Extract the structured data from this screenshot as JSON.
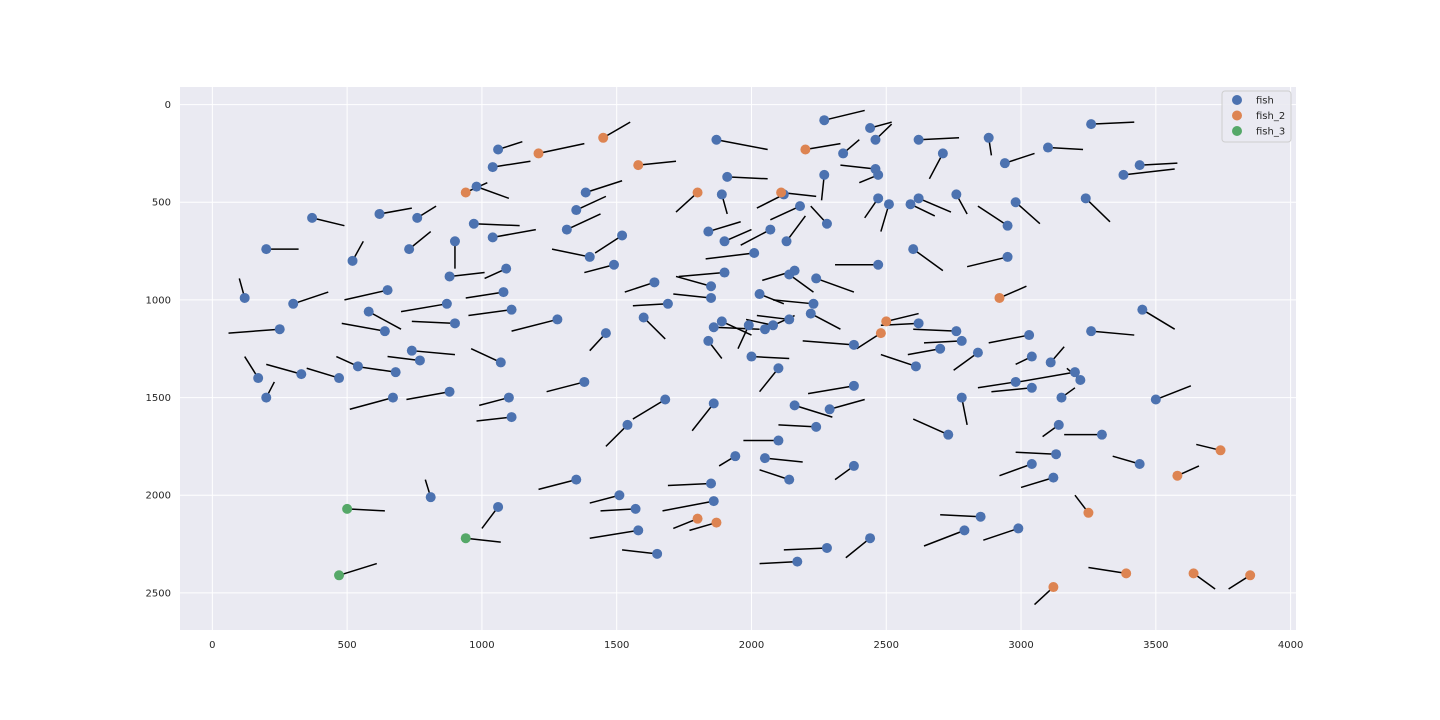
{
  "chart_data": {
    "type": "scatter",
    "title": "",
    "xlabel": "",
    "ylabel": "",
    "xlim": [
      -120,
      4020
    ],
    "ylim": [
      2690,
      -90
    ],
    "y_inverted": true,
    "xticks": [
      0,
      500,
      1000,
      1500,
      2000,
      2500,
      3000,
      3500,
      4000
    ],
    "yticks": [
      0,
      500,
      1000,
      1500,
      2000,
      2500
    ],
    "grid": true,
    "legend_position": "top-right",
    "background": "#eaeaf2",
    "series": [
      {
        "name": "fish",
        "color": "#4c72b0",
        "points": [
          [
            1060,
            230,
            1150,
            190
          ],
          [
            1040,
            320,
            1180,
            290
          ],
          [
            980,
            420,
            1100,
            480
          ],
          [
            1385,
            450,
            1520,
            390
          ],
          [
            1350,
            540,
            1460,
            470
          ],
          [
            1315,
            640,
            1440,
            560
          ],
          [
            1400,
            780,
            1260,
            740
          ],
          [
            1490,
            820,
            1380,
            860
          ],
          [
            1520,
            670,
            1420,
            760
          ],
          [
            1870,
            180,
            2060,
            230
          ],
          [
            1910,
            370,
            2060,
            380
          ],
          [
            1890,
            460,
            1910,
            560
          ],
          [
            1900,
            700,
            2000,
            640
          ],
          [
            1840,
            650,
            1960,
            600
          ],
          [
            1900,
            860,
            1730,
            880
          ],
          [
            1850,
            930,
            1720,
            880
          ],
          [
            1850,
            990,
            1710,
            970
          ],
          [
            1890,
            1110,
            2000,
            1180
          ],
          [
            2030,
            970,
            2120,
            1020
          ],
          [
            2010,
            760,
            1830,
            790
          ],
          [
            2070,
            640,
            1960,
            720
          ],
          [
            2120,
            460,
            2020,
            530
          ],
          [
            2130,
            700,
            2200,
            570
          ],
          [
            2180,
            520,
            2070,
            590
          ],
          [
            2270,
            360,
            2260,
            490
          ],
          [
            2280,
            610,
            2220,
            520
          ],
          [
            2340,
            250,
            2400,
            180
          ],
          [
            2440,
            120,
            2520,
            90
          ],
          [
            2270,
            80,
            2420,
            30
          ],
          [
            2460,
            180,
            2520,
            100
          ],
          [
            2460,
            330,
            2330,
            310
          ],
          [
            2470,
            360,
            2400,
            400
          ],
          [
            2470,
            480,
            2420,
            580
          ],
          [
            2510,
            510,
            2480,
            650
          ],
          [
            2590,
            510,
            2680,
            570
          ],
          [
            2620,
            480,
            2740,
            550
          ],
          [
            2620,
            180,
            2770,
            170
          ],
          [
            2710,
            250,
            2660,
            380
          ],
          [
            2760,
            460,
            2800,
            560
          ],
          [
            2880,
            170,
            2890,
            260
          ],
          [
            2940,
            300,
            3050,
            250
          ],
          [
            2950,
            620,
            2840,
            520
          ],
          [
            2980,
            500,
            3070,
            610
          ],
          [
            3100,
            220,
            3230,
            230
          ],
          [
            3260,
            100,
            3420,
            90
          ],
          [
            3380,
            360,
            3570,
            330
          ],
          [
            3440,
            310,
            3580,
            300
          ],
          [
            3240,
            480,
            3330,
            600
          ],
          [
            2470,
            820,
            2310,
            820
          ],
          [
            2600,
            740,
            2710,
            850
          ],
          [
            2950,
            780,
            2800,
            830
          ],
          [
            2140,
            870,
            2230,
            960
          ],
          [
            2160,
            850,
            2040,
            900
          ],
          [
            2240,
            890,
            2380,
            960
          ],
          [
            2230,
            1020,
            2080,
            1000
          ],
          [
            2220,
            1070,
            2330,
            1150
          ],
          [
            2050,
            1150,
            2160,
            1080
          ],
          [
            2080,
            1130,
            1980,
            1100
          ],
          [
            2140,
            1100,
            2020,
            1080
          ],
          [
            1990,
            1130,
            1950,
            1250
          ],
          [
            2380,
            1230,
            2190,
            1210
          ],
          [
            2000,
            1290,
            2140,
            1300
          ],
          [
            1640,
            910,
            1530,
            960
          ],
          [
            1690,
            1020,
            1560,
            1030
          ],
          [
            1600,
            1090,
            1680,
            1200
          ],
          [
            1460,
            1170,
            1400,
            1260
          ],
          [
            1280,
            1100,
            1110,
            1160
          ],
          [
            1110,
            1050,
            950,
            1080
          ],
          [
            1090,
            840,
            1010,
            890
          ],
          [
            1080,
            960,
            940,
            990
          ],
          [
            1040,
            680,
            1200,
            640
          ],
          [
            970,
            610,
            1140,
            620
          ],
          [
            900,
            700,
            900,
            840
          ],
          [
            880,
            880,
            1010,
            860
          ],
          [
            870,
            1020,
            700,
            1060
          ],
          [
            900,
            1120,
            740,
            1110
          ],
          [
            760,
            580,
            830,
            520
          ],
          [
            730,
            740,
            810,
            650
          ],
          [
            740,
            1260,
            900,
            1280
          ],
          [
            770,
            1310,
            650,
            1290
          ],
          [
            680,
            1370,
            530,
            1340
          ],
          [
            640,
            1160,
            480,
            1120
          ],
          [
            650,
            950,
            490,
            1000
          ],
          [
            620,
            560,
            740,
            530
          ],
          [
            580,
            1060,
            700,
            1150
          ],
          [
            540,
            1340,
            460,
            1290
          ],
          [
            520,
            800,
            560,
            700
          ],
          [
            470,
            1400,
            350,
            1350
          ],
          [
            370,
            580,
            490,
            620
          ],
          [
            300,
            1020,
            430,
            960
          ],
          [
            330,
            1380,
            200,
            1330
          ],
          [
            250,
            1150,
            60,
            1170
          ],
          [
            200,
            740,
            320,
            740
          ],
          [
            170,
            1400,
            120,
            1290
          ],
          [
            200,
            1500,
            230,
            1420
          ],
          [
            120,
            990,
            100,
            890
          ],
          [
            1070,
            1320,
            960,
            1250
          ],
          [
            1100,
            1500,
            990,
            1540
          ],
          [
            1110,
            1600,
            980,
            1620
          ],
          [
            1380,
            1420,
            1240,
            1470
          ],
          [
            1540,
            1640,
            1460,
            1750
          ],
          [
            1680,
            1510,
            1560,
            1610
          ],
          [
            1860,
            1530,
            1780,
            1670
          ],
          [
            1840,
            1210,
            1890,
            1300
          ],
          [
            1860,
            1140,
            2030,
            1150
          ],
          [
            2100,
            1350,
            2030,
            1470
          ],
          [
            2380,
            1440,
            2210,
            1480
          ],
          [
            2290,
            1560,
            2420,
            1510
          ],
          [
            2160,
            1540,
            2300,
            1600
          ],
          [
            2240,
            1650,
            2100,
            1640
          ],
          [
            2140,
            1920,
            2030,
            1870
          ],
          [
            2100,
            1720,
            1970,
            1720
          ],
          [
            2050,
            1810,
            2190,
            1830
          ],
          [
            1940,
            1800,
            1880,
            1850
          ],
          [
            1860,
            2030,
            1670,
            2080
          ],
          [
            1850,
            1940,
            1690,
            1950
          ],
          [
            2280,
            2270,
            2120,
            2280
          ],
          [
            2170,
            2340,
            2030,
            2350
          ],
          [
            2440,
            2220,
            2350,
            2320
          ],
          [
            2380,
            1850,
            2310,
            1920
          ],
          [
            2730,
            1690,
            2600,
            1610
          ],
          [
            2780,
            1500,
            2800,
            1640
          ],
          [
            2780,
            1210,
            2640,
            1220
          ],
          [
            2760,
            1160,
            2600,
            1150
          ],
          [
            2840,
            1270,
            2750,
            1360
          ],
          [
            2700,
            1250,
            2580,
            1280
          ],
          [
            2620,
            1120,
            2480,
            1130
          ],
          [
            2610,
            1340,
            2480,
            1280
          ],
          [
            2850,
            2110,
            2700,
            2100
          ],
          [
            2790,
            2180,
            2640,
            2260
          ],
          [
            2990,
            2170,
            2860,
            2230
          ],
          [
            3040,
            1840,
            2920,
            1900
          ],
          [
            3120,
            1910,
            3000,
            1960
          ],
          [
            3130,
            1790,
            2980,
            1780
          ],
          [
            3140,
            1640,
            3080,
            1700
          ],
          [
            3040,
            1290,
            2980,
            1330
          ],
          [
            3040,
            1450,
            2890,
            1470
          ],
          [
            3110,
            1320,
            3160,
            1240
          ],
          [
            2980,
            1420,
            2840,
            1450
          ],
          [
            3030,
            1180,
            2880,
            1220
          ],
          [
            3150,
            1500,
            3200,
            1450
          ],
          [
            3200,
            1370,
            2990,
            1420
          ],
          [
            3220,
            1410,
            3170,
            1350
          ],
          [
            3300,
            1690,
            3160,
            1690
          ],
          [
            3260,
            1160,
            3420,
            1180
          ],
          [
            3450,
            1050,
            3570,
            1150
          ],
          [
            3440,
            1840,
            3340,
            1800
          ],
          [
            3500,
            1510,
            3630,
            1440
          ],
          [
            1060,
            2060,
            1000,
            2170
          ],
          [
            810,
            2010,
            790,
            1920
          ],
          [
            880,
            1470,
            720,
            1510
          ],
          [
            670,
            1500,
            510,
            1560
          ],
          [
            1650,
            2300,
            1520,
            2280
          ],
          [
            1580,
            2180,
            1400,
            2220
          ],
          [
            1570,
            2070,
            1440,
            2080
          ],
          [
            1510,
            2000,
            1400,
            2040
          ],
          [
            1350,
            1920,
            1210,
            1970
          ]
        ]
      },
      {
        "name": "fish_2",
        "color": "#dd8452",
        "points": [
          [
            940,
            450,
            1020,
            400
          ],
          [
            1210,
            250,
            1380,
            200
          ],
          [
            1450,
            170,
            1550,
            90
          ],
          [
            1580,
            310,
            1720,
            290
          ],
          [
            1800,
            450,
            1720,
            550
          ],
          [
            2110,
            450,
            2240,
            470
          ],
          [
            2200,
            230,
            2330,
            200
          ],
          [
            2480,
            1170,
            2390,
            1250
          ],
          [
            2500,
            1110,
            2620,
            1070
          ],
          [
            2920,
            990,
            3020,
            930
          ],
          [
            3740,
            1770,
            3650,
            1740
          ],
          [
            3580,
            1900,
            3660,
            1850
          ],
          [
            3250,
            2090,
            3200,
            2000
          ],
          [
            3390,
            2400,
            3250,
            2370
          ],
          [
            3640,
            2400,
            3720,
            2480
          ],
          [
            3850,
            2410,
            3770,
            2480
          ],
          [
            3120,
            2470,
            3050,
            2560
          ],
          [
            1870,
            2140,
            1770,
            2180
          ],
          [
            1800,
            2120,
            1710,
            2170
          ]
        ]
      },
      {
        "name": "fish_3",
        "color": "#55a868",
        "points": [
          [
            500,
            2070,
            640,
            2080
          ],
          [
            940,
            2220,
            1070,
            2240
          ],
          [
            470,
            2410,
            610,
            2350
          ]
        ]
      }
    ]
  }
}
